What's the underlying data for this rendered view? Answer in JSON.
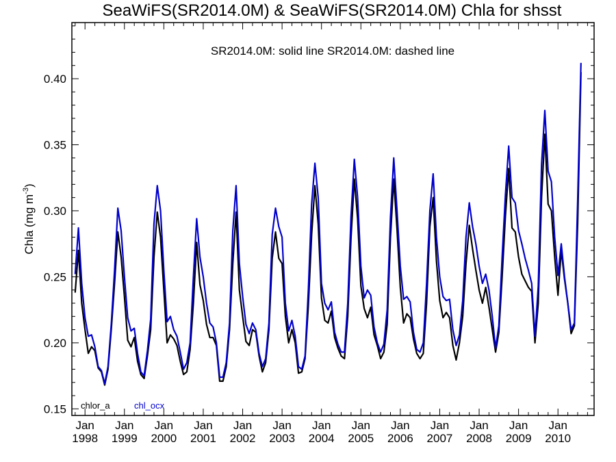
{
  "chart_data": {
    "type": "line",
    "title": "SeaWiFS(SR2014.0M) & SeaWiFS(SR2014.0M)  Chla for shsst",
    "subtitle": "SR2014.0M: solid line   SR2014.0M: dashed line",
    "ylabel": "Chla (mg m",
    "ylabel_sup": "-3",
    "ylabel_close": ")",
    "ylim": [
      0.145,
      0.4425
    ],
    "yticks": [
      {
        "value": 0.15,
        "label": "0.15"
      },
      {
        "value": 0.2,
        "label": "0.20"
      },
      {
        "value": 0.25,
        "label": "0.25"
      },
      {
        "value": 0.3,
        "label": "0.30"
      },
      {
        "value": 0.35,
        "label": "0.35"
      },
      {
        "value": 0.4,
        "label": "0.40"
      }
    ],
    "xlim": [
      "1997-09",
      "2010-12"
    ],
    "xticks": [
      {
        "date": "1998-01",
        "month": "Jan",
        "year": "1998"
      },
      {
        "date": "1999-01",
        "month": "Jan",
        "year": "1999"
      },
      {
        "date": "2000-01",
        "month": "Jan",
        "year": "2000"
      },
      {
        "date": "2001-01",
        "month": "Jan",
        "year": "2001"
      },
      {
        "date": "2002-01",
        "month": "Jan",
        "year": "2002"
      },
      {
        "date": "2003-01",
        "month": "Jan",
        "year": "2003"
      },
      {
        "date": "2004-01",
        "month": "Jan",
        "year": "2004"
      },
      {
        "date": "2005-01",
        "month": "Jan",
        "year": "2005"
      },
      {
        "date": "2006-01",
        "month": "Jan",
        "year": "2006"
      },
      {
        "date": "2007-01",
        "month": "Jan",
        "year": "2007"
      },
      {
        "date": "2008-01",
        "month": "Jan",
        "year": "2008"
      },
      {
        "date": "2009-01",
        "month": "Jan",
        "year": "2009"
      },
      {
        "date": "2010-01",
        "month": "Jan",
        "year": "2010"
      }
    ],
    "legend_position": "bottom-left",
    "start_date": "1997-10",
    "series": [
      {
        "name": "chlor_a",
        "color": "#000000",
        "values": [
          0.238,
          0.27,
          0.23,
          0.21,
          0.192,
          0.197,
          0.194,
          0.181,
          0.178,
          0.168,
          0.18,
          0.21,
          0.245,
          0.284,
          0.265,
          0.235,
          0.202,
          0.197,
          0.204,
          0.186,
          0.176,
          0.173,
          0.19,
          0.21,
          0.265,
          0.299,
          0.28,
          0.24,
          0.2,
          0.206,
          0.203,
          0.198,
          0.186,
          0.176,
          0.178,
          0.195,
          0.23,
          0.276,
          0.244,
          0.232,
          0.214,
          0.204,
          0.204,
          0.198,
          0.171,
          0.171,
          0.182,
          0.21,
          0.26,
          0.299,
          0.24,
          0.22,
          0.201,
          0.198,
          0.21,
          0.208,
          0.19,
          0.178,
          0.185,
          0.21,
          0.264,
          0.284,
          0.264,
          0.26,
          0.22,
          0.2,
          0.21,
          0.2,
          0.177,
          0.178,
          0.188,
          0.228,
          0.282,
          0.319,
          0.29,
          0.234,
          0.217,
          0.215,
          0.224,
          0.204,
          0.196,
          0.19,
          0.188,
          0.22,
          0.28,
          0.324,
          0.294,
          0.243,
          0.226,
          0.219,
          0.227,
          0.206,
          0.198,
          0.188,
          0.193,
          0.214,
          0.28,
          0.324,
          0.286,
          0.242,
          0.215,
          0.222,
          0.219,
          0.203,
          0.192,
          0.188,
          0.192,
          0.23,
          0.288,
          0.31,
          0.262,
          0.232,
          0.219,
          0.223,
          0.219,
          0.198,
          0.187,
          0.2,
          0.22,
          0.26,
          0.289,
          0.271,
          0.255,
          0.24,
          0.23,
          0.242,
          0.227,
          0.21,
          0.193,
          0.208,
          0.25,
          0.296,
          0.332,
          0.287,
          0.284,
          0.265,
          0.252,
          0.247,
          0.242,
          0.239,
          0.2,
          0.23,
          0.31,
          0.358,
          0.305,
          0.3,
          0.265,
          0.236,
          0.27,
          0.248,
          0.23,
          0.207,
          0.213,
          0.29,
          0.405
        ]
      },
      {
        "name": "chl_ocx",
        "color": "#0000cc",
        "values": [
          0.252,
          0.287,
          0.245,
          0.219,
          0.205,
          0.206,
          0.197,
          0.182,
          0.179,
          0.169,
          0.182,
          0.214,
          0.255,
          0.302,
          0.285,
          0.25,
          0.219,
          0.209,
          0.211,
          0.192,
          0.178,
          0.175,
          0.194,
          0.218,
          0.29,
          0.319,
          0.3,
          0.255,
          0.216,
          0.22,
          0.21,
          0.205,
          0.193,
          0.18,
          0.185,
          0.2,
          0.25,
          0.294,
          0.265,
          0.25,
          0.23,
          0.215,
          0.212,
          0.2,
          0.174,
          0.174,
          0.185,
          0.215,
          0.285,
          0.319,
          0.26,
          0.235,
          0.214,
          0.207,
          0.215,
          0.21,
          0.192,
          0.182,
          0.188,
          0.215,
          0.282,
          0.302,
          0.288,
          0.28,
          0.23,
          0.209,
          0.217,
          0.205,
          0.182,
          0.18,
          0.19,
          0.24,
          0.305,
          0.336,
          0.31,
          0.245,
          0.23,
          0.225,
          0.231,
          0.208,
          0.199,
          0.193,
          0.193,
          0.23,
          0.296,
          0.339,
          0.31,
          0.258,
          0.234,
          0.24,
          0.236,
          0.212,
          0.2,
          0.193,
          0.199,
          0.225,
          0.295,
          0.34,
          0.3,
          0.258,
          0.233,
          0.235,
          0.231,
          0.208,
          0.195,
          0.193,
          0.2,
          0.245,
          0.3,
          0.328,
          0.28,
          0.25,
          0.235,
          0.232,
          0.233,
          0.21,
          0.198,
          0.206,
          0.232,
          0.28,
          0.306,
          0.288,
          0.275,
          0.258,
          0.245,
          0.252,
          0.24,
          0.22,
          0.196,
          0.213,
          0.265,
          0.312,
          0.349,
          0.31,
          0.306,
          0.285,
          0.275,
          0.264,
          0.255,
          0.245,
          0.205,
          0.243,
          0.335,
          0.376,
          0.33,
          0.322,
          0.28,
          0.251,
          0.275,
          0.25,
          0.23,
          0.21,
          0.215,
          0.308,
          0.412
        ]
      }
    ]
  }
}
